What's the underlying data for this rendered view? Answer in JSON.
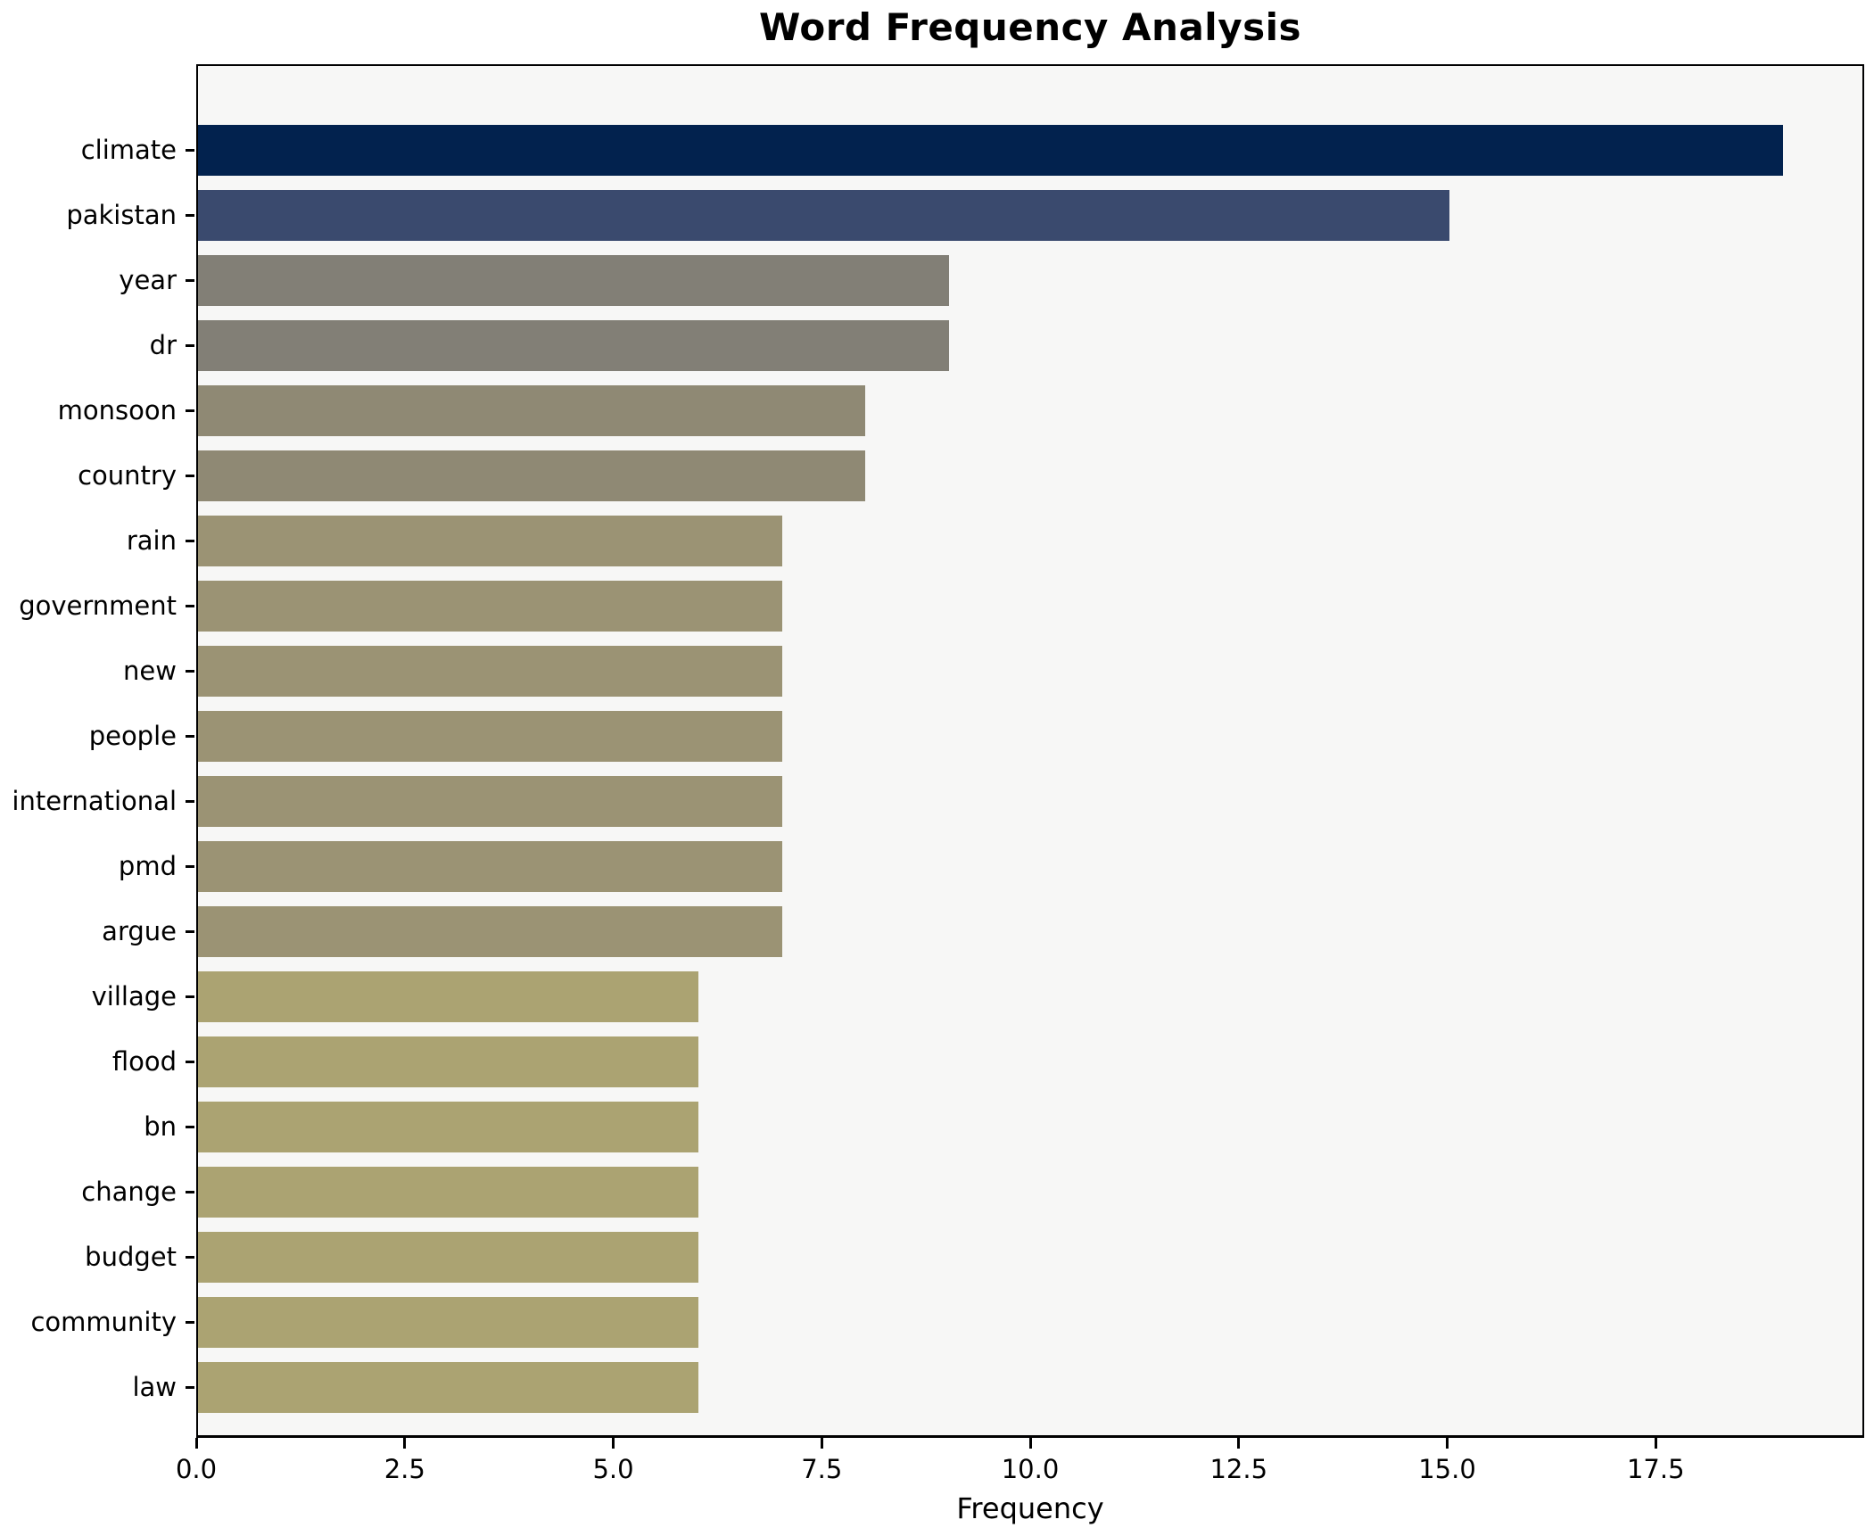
{
  "title": "Word Frequency Analysis",
  "xlabel": "Frequency",
  "colors": {
    "figure_bg": "#ffffff",
    "plot_bg": "#f7f7f6",
    "frame": "#000000",
    "text": "#000000"
  },
  "x_axis": {
    "tick_labels": [
      "0.0",
      "2.5",
      "5.0",
      "7.5",
      "10.0",
      "12.5",
      "15.0",
      "17.5"
    ],
    "tick_values": [
      0,
      2.5,
      5,
      7.5,
      10,
      12.5,
      15,
      17.5
    ],
    "max": 20
  },
  "chart_data": {
    "type": "bar",
    "orientation": "horizontal",
    "title": "Word Frequency Analysis",
    "xlabel": "Frequency",
    "ylabel": "",
    "xlim": [
      0,
      20
    ],
    "grid": false,
    "legend": false,
    "categories": [
      "climate",
      "pakistan",
      "year",
      "dr",
      "monsoon",
      "country",
      "rain",
      "government",
      "new",
      "people",
      "international",
      "pmd",
      "argue",
      "village",
      "flood",
      "bn",
      "change",
      "budget",
      "community",
      "law"
    ],
    "values": [
      19,
      15,
      9,
      9,
      8,
      8,
      7,
      7,
      7,
      7,
      7,
      7,
      7,
      6,
      6,
      6,
      6,
      6,
      6,
      6
    ],
    "bar_colors": [
      "#02224e",
      "#3a4a6e",
      "#827f76",
      "#827f76",
      "#8f8974",
      "#8f8974",
      "#9b9374",
      "#9b9374",
      "#9b9374",
      "#9b9374",
      "#9b9374",
      "#9b9374",
      "#9b9374",
      "#aba372",
      "#aba372",
      "#aba372",
      "#aba372",
      "#aba372",
      "#aba372",
      "#aba372"
    ]
  }
}
